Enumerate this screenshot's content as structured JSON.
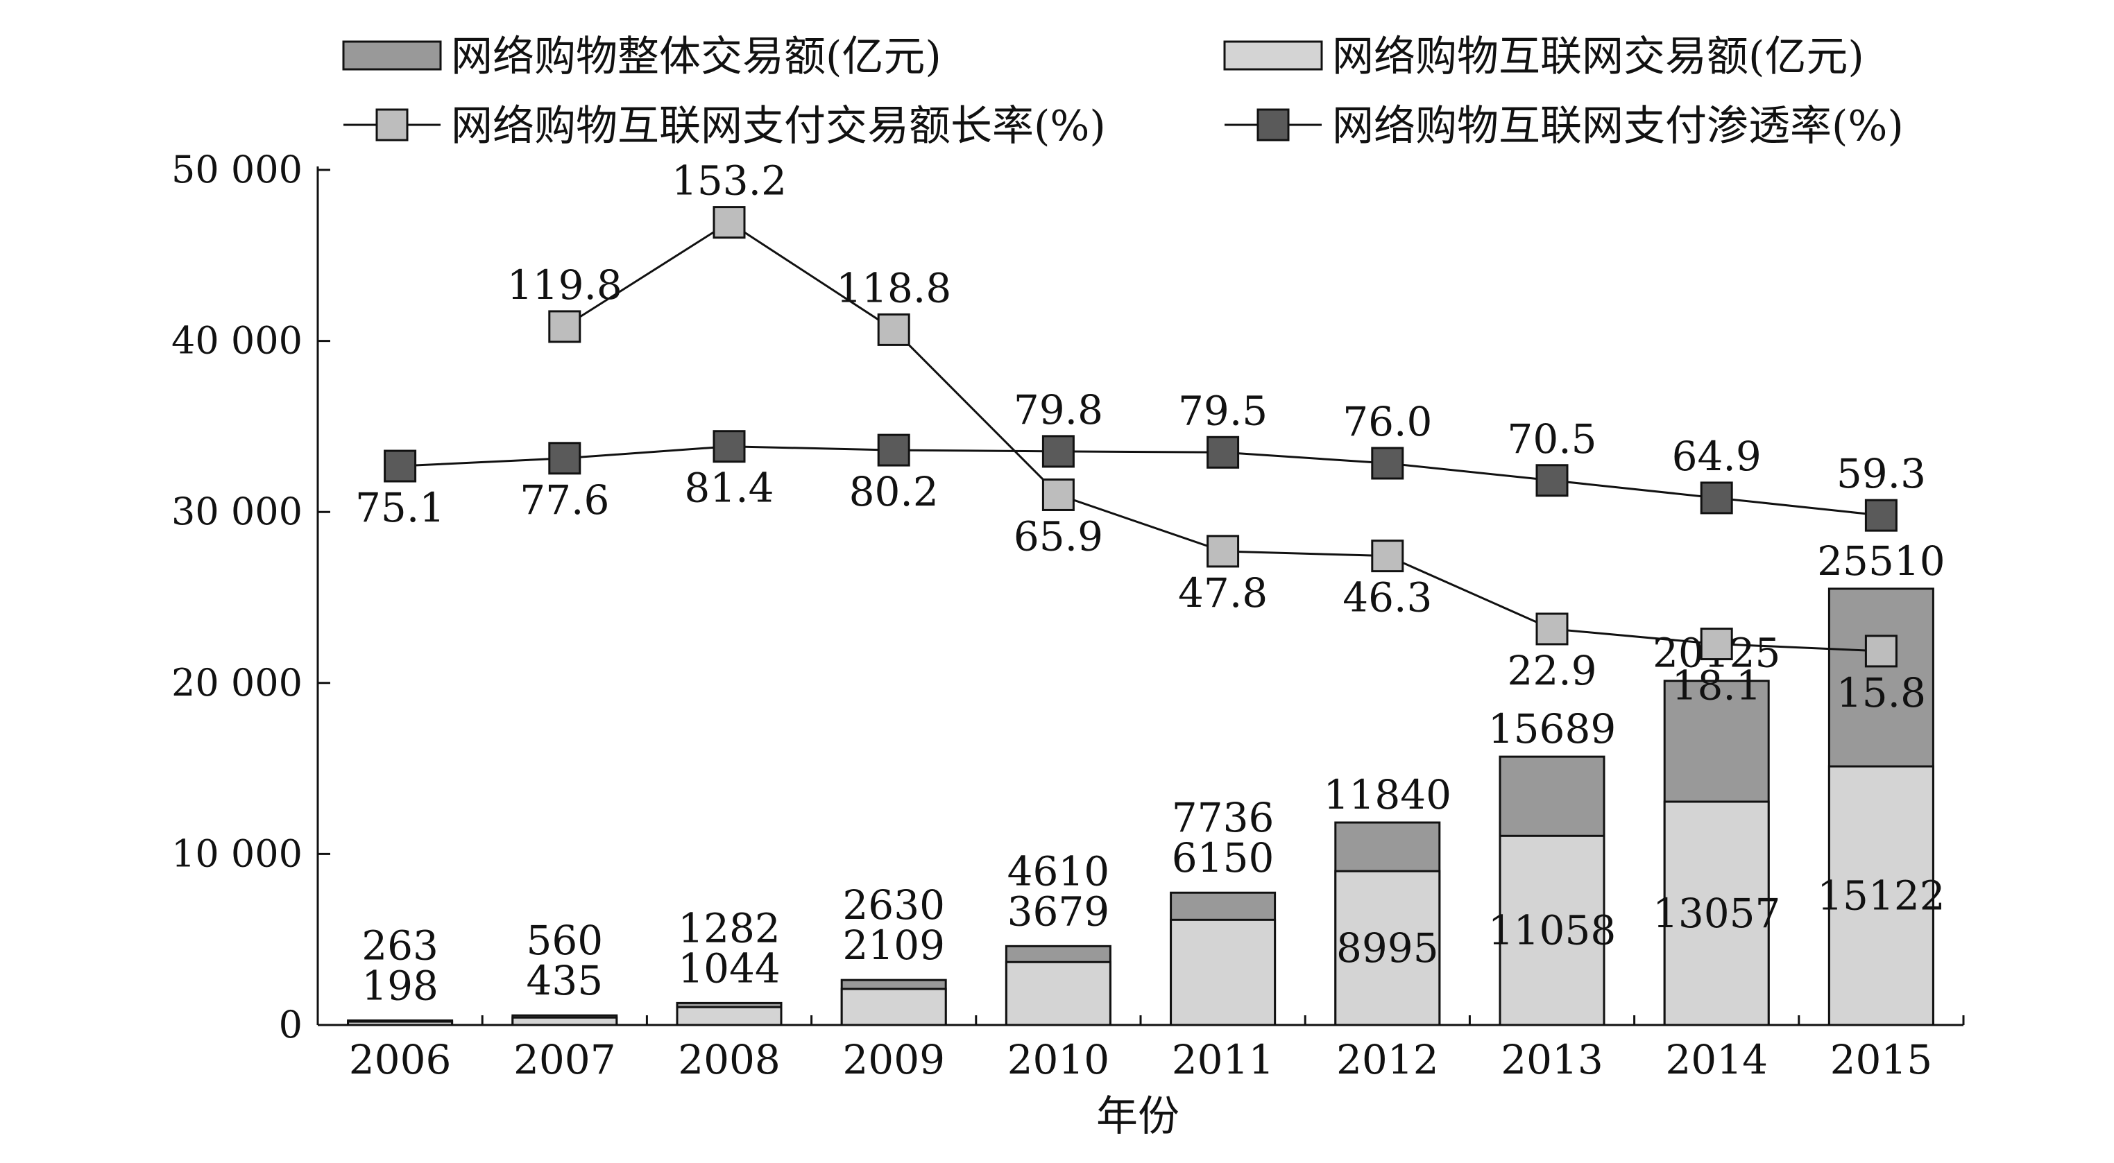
{
  "chart_data": {
    "type": "bar",
    "title": "",
    "xlabel": "年份",
    "ylabel": "",
    "ylim": [
      0,
      50000
    ],
    "yticks": [
      0,
      10000,
      20000,
      30000,
      40000,
      50000
    ],
    "ytick_labels": [
      "0",
      "10 000",
      "20 000",
      "30 000",
      "40 000",
      "50 000"
    ],
    "categories": [
      "2006",
      "2007",
      "2008",
      "2009",
      "2010",
      "2011",
      "2012",
      "2013",
      "2014",
      "2015"
    ],
    "bar_series": [
      {
        "name": "网络购物整体交易额(亿元)",
        "color": "#999999",
        "values": [
          263,
          560,
          1282,
          2630,
          4610,
          7736,
          11840,
          15689,
          20125,
          25510
        ],
        "labels": [
          "263",
          "560",
          "1282",
          "2630",
          "4610",
          "7736",
          "11840",
          "15689",
          "20125",
          "25510"
        ]
      },
      {
        "name": "网络购物互联网交易额(亿元)",
        "color": "#d4d4d4",
        "values": [
          198,
          435,
          1044,
          2109,
          3679,
          6150,
          8995,
          11058,
          13057,
          15122
        ],
        "labels": [
          "198",
          "435",
          "1044",
          "2109",
          "3679",
          "6150",
          "8995",
          "11058",
          "13057",
          "15122"
        ]
      }
    ],
    "line_series": [
      {
        "name": "网络购物互联网支付交易额长率(%)",
        "marker_color": "#bdbdbd",
        "values": [
          null,
          119.8,
          153.2,
          118.8,
          65.9,
          47.8,
          46.3,
          22.9,
          18.1,
          15.8
        ],
        "labels": [
          "",
          "119.8",
          "153.2",
          "118.8",
          "65.9",
          "47.8",
          "46.3",
          "22.9",
          "18.1",
          "15.8"
        ]
      },
      {
        "name": "网络购物互联网支付渗透率(%)",
        "marker_color": "#5a5a5a",
        "values": [
          75.1,
          77.6,
          81.4,
          80.2,
          79.8,
          79.5,
          76.0,
          70.5,
          64.9,
          59.3
        ],
        "labels": [
          "75.1",
          "77.6",
          "81.4",
          "80.2",
          "79.8",
          "79.5",
          "76.0",
          "70.5",
          "64.9",
          "59.3"
        ]
      }
    ],
    "legend": "top",
    "grid": false
  }
}
